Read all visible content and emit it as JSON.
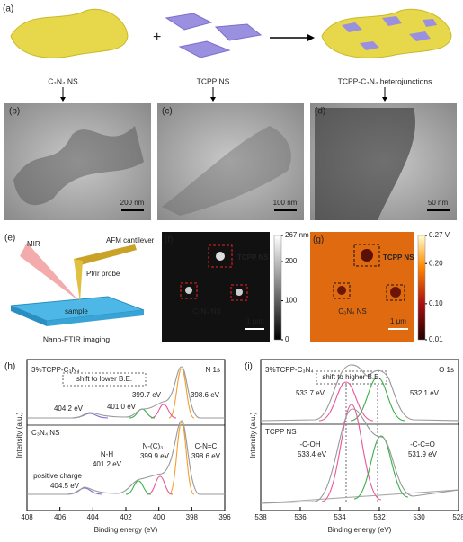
{
  "panels": {
    "a": {
      "label": "(a)",
      "captions": [
        "C₃N₄ NS",
        "TCPP NS",
        "TCPP-C₃N₄ heterojunctions"
      ]
    },
    "b": {
      "label": "(b)",
      "scale_bar": "200 nm"
    },
    "c": {
      "label": "(c)",
      "scale_bar": "100 nm"
    },
    "d": {
      "label": "(d)",
      "scale_bar": "50 nm"
    },
    "e": {
      "label": "(e)",
      "labels": [
        "MIR",
        "AFM cantilever",
        "Pt/Ir probe",
        "sample"
      ],
      "caption": "Nano-FTIR imaging"
    },
    "f": {
      "label": "(f)",
      "annotations": [
        "TCPP NS",
        "C₃N₄ NS"
      ],
      "scale_bar": "1 μm",
      "colorbar": {
        "lim": [
          0,
          267
        ],
        "ticks": [
          0,
          100,
          200,
          {
            "value": 267,
            "label": "267 nm"
          }
        ]
      }
    },
    "g": {
      "label": "(g)",
      "annotations": [
        "TCPP NS",
        "C₃N₄ NS"
      ],
      "scale_bar": "1 μm",
      "colorbar": {
        "lim": [
          0.01,
          0.27
        ],
        "ticks": [
          0.01,
          {
            "value": 0.1,
            "label": "0.10"
          },
          {
            "value": 0.2,
            "label": "0.20"
          },
          {
            "value": 0.27,
            "label": "0.27 V"
          }
        ]
      }
    },
    "h": {
      "label": "(h)",
      "title": "N 1s",
      "xlabel": "Binding energy (eV)",
      "ylabel": "Intensity (a.u.)",
      "xlim": [
        408,
        396
      ],
      "xticks": [
        408,
        406,
        404,
        402,
        400,
        398,
        396
      ],
      "samples": [
        "3%TCPP-C₃N₄",
        "C₃N₄ NS"
      ],
      "annotations": [
        "shift to lower B.E.",
        "404.2 eV",
        "401.0 eV",
        "399.7 eV",
        "398.6 eV",
        "positive charge",
        "404.5 eV",
        "N-H",
        "401.2 eV",
        "N-(C)₃",
        "399.9 eV",
        "C-N=C",
        "398.6 eV"
      ]
    },
    "i": {
      "label": "(i)",
      "title": "O 1s",
      "xlabel": "Binding energy (eV)",
      "ylabel": "Intensity (a.u.)",
      "xlim": [
        538,
        528
      ],
      "xticks": [
        538,
        536,
        534,
        532,
        530,
        528
      ],
      "samples": [
        "3%TCPP-C₃N₄",
        "TCPP NS"
      ],
      "annotations": [
        "shift to higher B.E.",
        "533.7 eV",
        "532.1 eV",
        "-C-OH",
        "533.4 eV",
        "-C-C=O",
        "531.9 eV"
      ]
    }
  }
}
